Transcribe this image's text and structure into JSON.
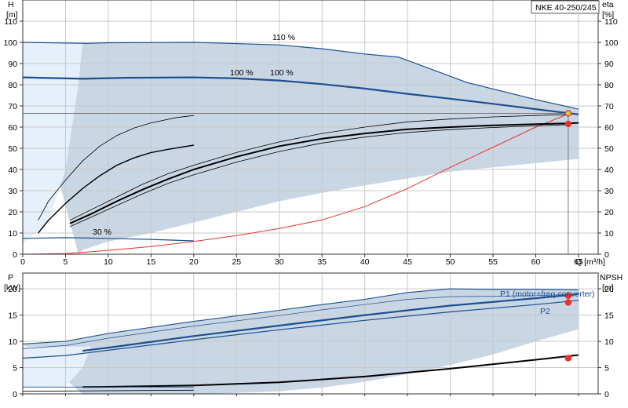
{
  "model_label": "NKE 40-250/245",
  "colors": {
    "envelope": "#c9d6e4",
    "envelope_light": "#e6f0fa",
    "curve_blue": "#1c4f91",
    "curve_black": "#000000",
    "system_red": "#e8322a",
    "duty_point": "#e8322a",
    "duty_point_yellow": "#f2c12e",
    "grid": "#c9c9c9"
  },
  "chart_data": [
    {
      "type": "line",
      "name": "head",
      "xlabel": "Q [m³/h]",
      "ylabel": "H",
      "ylabel_unit": "[m]",
      "y2label": "eta",
      "y2label_unit": "[%]",
      "xlim": [
        0,
        67.3
      ],
      "ylim": [
        0,
        120
      ],
      "y2lim": [
        0,
        120
      ],
      "x_ticks": [
        0,
        5,
        10,
        15,
        20,
        25,
        30,
        35,
        40,
        45,
        50,
        55,
        60,
        65
      ],
      "y_ticks": [
        0,
        10,
        20,
        30,
        40,
        50,
        60,
        70,
        80,
        90,
        100,
        110
      ],
      "y2_ticks": [
        0,
        10,
        20,
        30,
        40,
        50,
        60,
        70,
        80,
        90,
        100,
        110
      ],
      "grid": true,
      "annotations": [
        "110 %",
        "100 %",
        "100 %",
        "30 %"
      ],
      "envelope_upper": [
        [
          0,
          100
        ],
        [
          7.5,
          99.5
        ],
        [
          10,
          99.8
        ],
        [
          20,
          100
        ],
        [
          30,
          98.8
        ],
        [
          35,
          97
        ],
        [
          40,
          94.5
        ],
        [
          44,
          93
        ],
        [
          48,
          87
        ],
        [
          52,
          81
        ],
        [
          56,
          77
        ],
        [
          60,
          73
        ],
        [
          65,
          68.5
        ]
      ],
      "envelope_lower": [
        [
          65,
          45
        ],
        [
          60,
          43
        ],
        [
          50,
          39
        ],
        [
          40,
          32.5
        ],
        [
          35,
          29
        ],
        [
          30,
          25
        ],
        [
          25,
          20
        ],
        [
          20,
          15
        ],
        [
          15,
          10
        ],
        [
          10,
          6
        ],
        [
          7,
          2
        ],
        [
          6.5,
          0
        ]
      ],
      "light_region": [
        [
          0,
          100
        ],
        [
          7,
          100
        ],
        [
          6.5,
          80
        ],
        [
          5,
          40
        ],
        [
          3,
          15
        ],
        [
          0,
          5
        ]
      ],
      "series": [
        {
          "name": "110 %",
          "color": "#1c4f91",
          "width": 1.2,
          "points": [
            [
              0,
              100
            ],
            [
              7.5,
              99.5
            ],
            [
              10,
              99.8
            ],
            [
              20,
              100
            ],
            [
              30,
              98.8
            ],
            [
              35,
              97
            ],
            [
              40,
              94.5
            ],
            [
              44,
              93
            ],
            [
              48,
              87
            ],
            [
              52,
              81
            ],
            [
              56,
              77
            ],
            [
              60,
              73
            ],
            [
              65,
              68.5
            ]
          ]
        },
        {
          "name": "100 %",
          "color": "#1c4f91",
          "width": 2.2,
          "points": [
            [
              0,
              83.5
            ],
            [
              7,
              82.8
            ],
            [
              12,
              83.3
            ],
            [
              20,
              83.5
            ],
            [
              25,
              83
            ],
            [
              30,
              82
            ],
            [
              35,
              80.3
            ],
            [
              40,
              78.2
            ],
            [
              45,
              75.7
            ],
            [
              50,
              73.4
            ],
            [
              55,
              71
            ],
            [
              60,
              68.5
            ],
            [
              65,
              66
            ]
          ]
        },
        {
          "name": "30 %",
          "color": "#1c4f91",
          "width": 1.2,
          "points": [
            [
              0,
              7.5
            ],
            [
              5,
              7.8
            ],
            [
              10,
              7.5
            ],
            [
              15,
              7
            ],
            [
              20,
              6.3
            ]
          ]
        },
        {
          "name": "system curve",
          "color": "#e8322a",
          "width": 1,
          "points": [
            [
              0,
              0
            ],
            [
              5,
              0.3
            ],
            [
              10,
              1.8
            ],
            [
              15,
              3.6
            ],
            [
              20,
              6
            ],
            [
              25,
              8.8
            ],
            [
              30,
              12.1
            ],
            [
              35,
              16.2
            ],
            [
              40,
              22.5
            ],
            [
              45,
              31
            ],
            [
              50,
              41
            ],
            [
              55,
              50.5
            ],
            [
              60,
              60
            ],
            [
              64,
              66.5
            ]
          ]
        },
        {
          "name": "eta 1",
          "color": "#000000",
          "width": 0.8,
          "points": [
            [
              1.8,
              16
            ],
            [
              3,
              25
            ],
            [
              5,
              35
            ],
            [
              7,
              44
            ],
            [
              9,
              51
            ],
            [
              11,
              56
            ],
            [
              13,
              59.5
            ],
            [
              15,
              62
            ],
            [
              18,
              64.5
            ],
            [
              20,
              65.5
            ]
          ]
        },
        {
          "name": "eta 2",
          "color": "#000000",
          "width": 1.4,
          "points": [
            [
              1.8,
              10
            ],
            [
              3,
              16
            ],
            [
              5,
              24
            ],
            [
              7,
              31
            ],
            [
              9,
              37
            ],
            [
              11,
              42
            ],
            [
              13,
              45.5
            ],
            [
              15,
              48
            ],
            [
              17,
              49.5
            ],
            [
              20,
              51.5
            ]
          ]
        },
        {
          "name": "eta 3",
          "color": "#000000",
          "width": 0.8,
          "points": [
            [
              5.5,
              16
            ],
            [
              8,
              21
            ],
            [
              11,
              27
            ],
            [
              14,
              33
            ],
            [
              17,
              38
            ],
            [
              20,
              42
            ],
            [
              25,
              48
            ],
            [
              30,
              53
            ],
            [
              35,
              57
            ],
            [
              40,
              60
            ],
            [
              45,
              62.5
            ],
            [
              50,
              63.8
            ],
            [
              55,
              64.8
            ],
            [
              60,
              65.5
            ],
            [
              64,
              66
            ]
          ]
        },
        {
          "name": "eta 4",
          "color": "#000000",
          "width": 2.0,
          "points": [
            [
              5.5,
              14.5
            ],
            [
              8,
              19
            ],
            [
              11,
              25
            ],
            [
              14,
              30.5
            ],
            [
              17,
              35.5
            ],
            [
              20,
              40
            ],
            [
              25,
              46
            ],
            [
              30,
              51
            ],
            [
              35,
              54.5
            ],
            [
              40,
              57
            ],
            [
              45,
              59
            ],
            [
              50,
              60
            ],
            [
              55,
              60.8
            ],
            [
              60,
              61.4
            ],
            [
              64,
              61.8
            ],
            [
              65,
              62
            ]
          ]
        },
        {
          "name": "eta 5",
          "color": "#000000",
          "width": 0.8,
          "points": [
            [
              5.5,
              13
            ],
            [
              8,
              17.5
            ],
            [
              11,
              23
            ],
            [
              14,
              28.5
            ],
            [
              17,
              33.5
            ],
            [
              20,
              37.5
            ],
            [
              25,
              43.5
            ],
            [
              30,
              48.5
            ],
            [
              35,
              52.5
            ],
            [
              40,
              55.3
            ],
            [
              45,
              57.5
            ],
            [
              50,
              58.8
            ],
            [
              55,
              59.8
            ],
            [
              60,
              60.6
            ],
            [
              64,
              61.2
            ]
          ]
        }
      ],
      "duty_points": [
        [
          63.8,
          66.5
        ],
        [
          63.8,
          61.5
        ]
      ],
      "duty_x": 63.8,
      "duty_h": 66.5
    },
    {
      "type": "line",
      "name": "power",
      "xlabel": "",
      "ylabel": "P",
      "ylabel_unit": "[kW]",
      "y2label": "NPSH",
      "y2label_unit": "[m]",
      "xlim": [
        0,
        67.3
      ],
      "ylim": [
        0,
        23
      ],
      "y2lim": [
        0,
        23
      ],
      "y_ticks": [
        0,
        5,
        10,
        15,
        20
      ],
      "y2_ticks": [
        0,
        5,
        10,
        15,
        20
      ],
      "grid": true,
      "annotations": [
        "P1 (motor+freq.converter)",
        "P2"
      ],
      "envelope_upper": [
        [
          0,
          9.5
        ],
        [
          5,
          10
        ],
        [
          10,
          11.5
        ],
        [
          20,
          13.8
        ],
        [
          30,
          15.9
        ],
        [
          35,
          17
        ],
        [
          40,
          18
        ],
        [
          45,
          19.3
        ],
        [
          50,
          20
        ],
        [
          55,
          19.9
        ],
        [
          60,
          19.9
        ],
        [
          65,
          19.8
        ]
      ],
      "envelope_lower": [
        [
          65,
          12.3
        ],
        [
          60,
          10
        ],
        [
          55,
          7.5
        ],
        [
          50,
          5.5
        ],
        [
          45,
          3.8
        ],
        [
          40,
          2.3
        ],
        [
          35,
          1.2
        ],
        [
          30,
          0.5
        ],
        [
          25,
          0.2
        ],
        [
          20,
          0
        ],
        [
          7,
          0
        ]
      ],
      "light_region": [
        [
          0,
          1.3
        ],
        [
          5,
          1.4
        ],
        [
          7,
          5
        ],
        [
          8,
          9
        ],
        [
          0,
          9
        ]
      ],
      "series": [
        {
          "name": "p top",
          "color": "#1c4f91",
          "width": 1.1,
          "points": [
            [
              0,
              9.5
            ],
            [
              5,
              10
            ],
            [
              10,
              11.5
            ],
            [
              20,
              13.8
            ],
            [
              30,
              15.9
            ],
            [
              35,
              17
            ],
            [
              40,
              18
            ],
            [
              45,
              19.3
            ],
            [
              50,
              20
            ],
            [
              55,
              19.9
            ],
            [
              60,
              19.9
            ],
            [
              65,
              19.8
            ]
          ]
        },
        {
          "name": "p second",
          "color": "#1c4f91",
          "width": 0.7,
          "points": [
            [
              0,
              8.6
            ],
            [
              5,
              9.2
            ],
            [
              10,
              10.6
            ],
            [
              20,
              12.9
            ],
            [
              30,
              14.9
            ],
            [
              35,
              16
            ],
            [
              40,
              17
            ],
            [
              45,
              18
            ],
            [
              50,
              18.5
            ],
            [
              55,
              18.6
            ],
            [
              60,
              18.7
            ],
            [
              65,
              19
            ]
          ]
        },
        {
          "name": "P1 (motor+freq.converter)",
          "color": "#1c4f91",
          "width": 2.2,
          "points": [
            [
              7,
              8.2
            ],
            [
              10,
              8.8
            ],
            [
              20,
              11
            ],
            [
              30,
              13
            ],
            [
              40,
              15
            ],
            [
              50,
              16.8
            ],
            [
              60,
              18.2
            ],
            [
              65,
              19
            ]
          ]
        },
        {
          "name": "P2",
          "color": "#1c4f91",
          "width": 1.2,
          "points": [
            [
              0,
              6.8
            ],
            [
              5,
              7.3
            ],
            [
              10,
              8.3
            ],
            [
              20,
              10.3
            ],
            [
              30,
              12.2
            ],
            [
              40,
              14
            ],
            [
              50,
              15.6
            ],
            [
              60,
              17
            ],
            [
              65,
              17.8
            ]
          ]
        },
        {
          "name": "npsh",
          "color": "#000000",
          "width": 2.0,
          "points": [
            [
              7,
              1.3
            ],
            [
              10,
              1.35
            ],
            [
              20,
              1.6
            ],
            [
              30,
              2.2
            ],
            [
              40,
              3.3
            ],
            [
              50,
              4.8
            ],
            [
              60,
              6.5
            ],
            [
              65,
              7.4
            ]
          ]
        },
        {
          "name": "npsh thin",
          "color": "#000000",
          "width": 0.8,
          "points": [
            [
              0,
              0.5
            ],
            [
              20,
              0.7
            ]
          ]
        },
        {
          "name": "p low thin",
          "color": "#1c4f91",
          "width": 0.8,
          "points": [
            [
              0,
              1.3
            ],
            [
              20,
              1.3
            ]
          ]
        }
      ],
      "duty_points": [
        [
          63.8,
          18.7
        ],
        [
          63.8,
          17.4
        ],
        [
          63.8,
          6.8
        ]
      ]
    }
  ]
}
